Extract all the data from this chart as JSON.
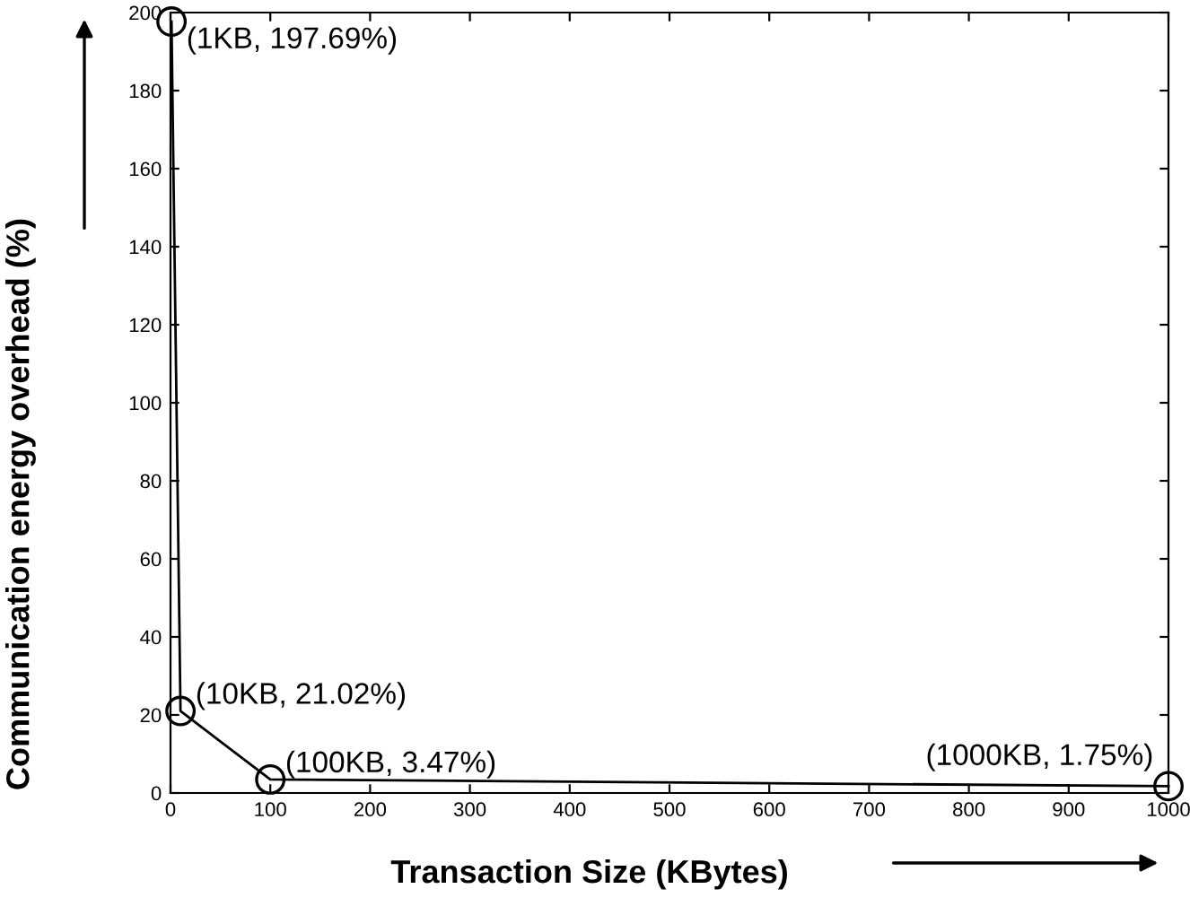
{
  "chart_data": {
    "type": "line",
    "xlabel": "Transaction Size (KBytes)",
    "ylabel": "Communication energy overhead (%)",
    "x": [
      1,
      10,
      100,
      1000
    ],
    "series": [
      {
        "color": "#000000",
        "values": [
          197.69,
          21.02,
          3.47,
          1.75
        ]
      }
    ],
    "marker": "circle",
    "line_style": "solid",
    "grid": false,
    "legend": false,
    "xlim": [
      0,
      1000
    ],
    "xticks": [
      0,
      100,
      200,
      300,
      400,
      500,
      600,
      700,
      800,
      900,
      1000
    ],
    "ylim": [
      0,
      200
    ],
    "yticks": [
      0,
      20,
      40,
      60,
      80,
      100,
      120,
      140,
      160,
      180,
      200
    ],
    "annotations": [
      {
        "text": "(1KB, 197.69%)",
        "x": 1,
        "y": 197.69
      },
      {
        "text": "(10KB, 21.02%)",
        "x": 10,
        "y": 21.02
      },
      {
        "text": "(100KB, 3.47%)",
        "x": 100,
        "y": 3.47
      },
      {
        "text": "(1000KB, 1.75%)",
        "x": 1000,
        "y": 1.75
      }
    ]
  }
}
